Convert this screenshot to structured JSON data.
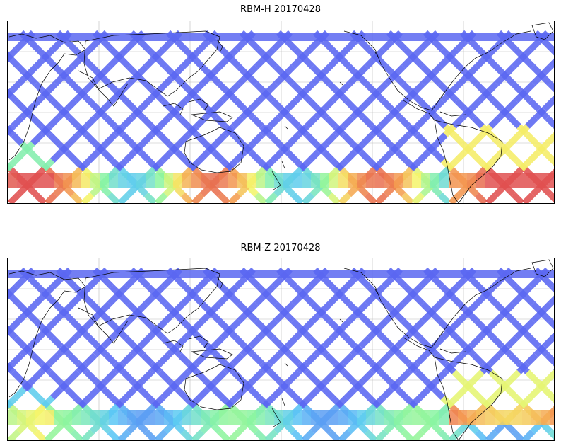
{
  "panels": [
    {
      "title": "RBM-H 20170428"
    },
    {
      "title": "RBM-Z 20170428"
    }
  ],
  "colors": {
    "low": "#5a5cf0",
    "mid_low": "#5ac8f5",
    "mid": "#8af5a0",
    "mid_high": "#f5f56a",
    "high": "#f5a050",
    "max": "#e05050",
    "coastline": "#000000",
    "grid": "#bbbbbb"
  }
}
